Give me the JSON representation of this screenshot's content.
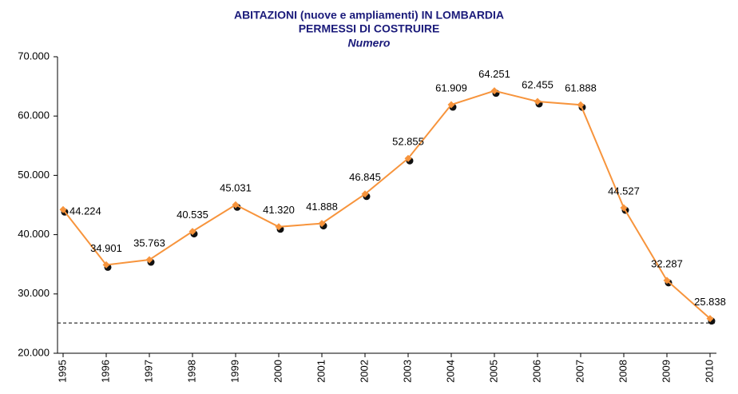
{
  "chart_data": {
    "type": "line",
    "title": "ABITAZIONI (nuove e ampliamenti) IN LOMBARDIA",
    "subtitle": "PERMESSI DI COSTRUIRE",
    "unit_label": "Numero",
    "categories": [
      "1995",
      "1996",
      "1997",
      "1998",
      "1999",
      "2000",
      "2001",
      "2002",
      "2003",
      "2004",
      "2005",
      "2006",
      "2007",
      "2008",
      "2009",
      "2010"
    ],
    "series": [
      {
        "color": "#f7943c",
        "values": [
          44224,
          34901,
          35763,
          40535,
          45031,
          41320,
          41888,
          46845,
          52855,
          61909,
          64251,
          62455,
          61888,
          44527,
          32287,
          25838
        ],
        "value_labels": [
          "44.224",
          "34.901",
          "35.763",
          "40.535",
          "45.031",
          "41.320",
          "41.888",
          "46.845",
          "52.855",
          "61.909",
          "64.251",
          "62.455",
          "61.888",
          "44.527",
          "32.287",
          "25.838"
        ]
      }
    ],
    "ylim": [
      20000,
      70000
    ],
    "yticks": [
      {
        "value": 20000,
        "label": "20.000"
      },
      {
        "value": 30000,
        "label": "30.000"
      },
      {
        "value": 40000,
        "label": "40.000"
      },
      {
        "value": 50000,
        "label": "50.000"
      },
      {
        "value": 60000,
        "label": "60.000"
      },
      {
        "value": 70000,
        "label": "70.000"
      }
    ],
    "reference_line": 25100
  }
}
